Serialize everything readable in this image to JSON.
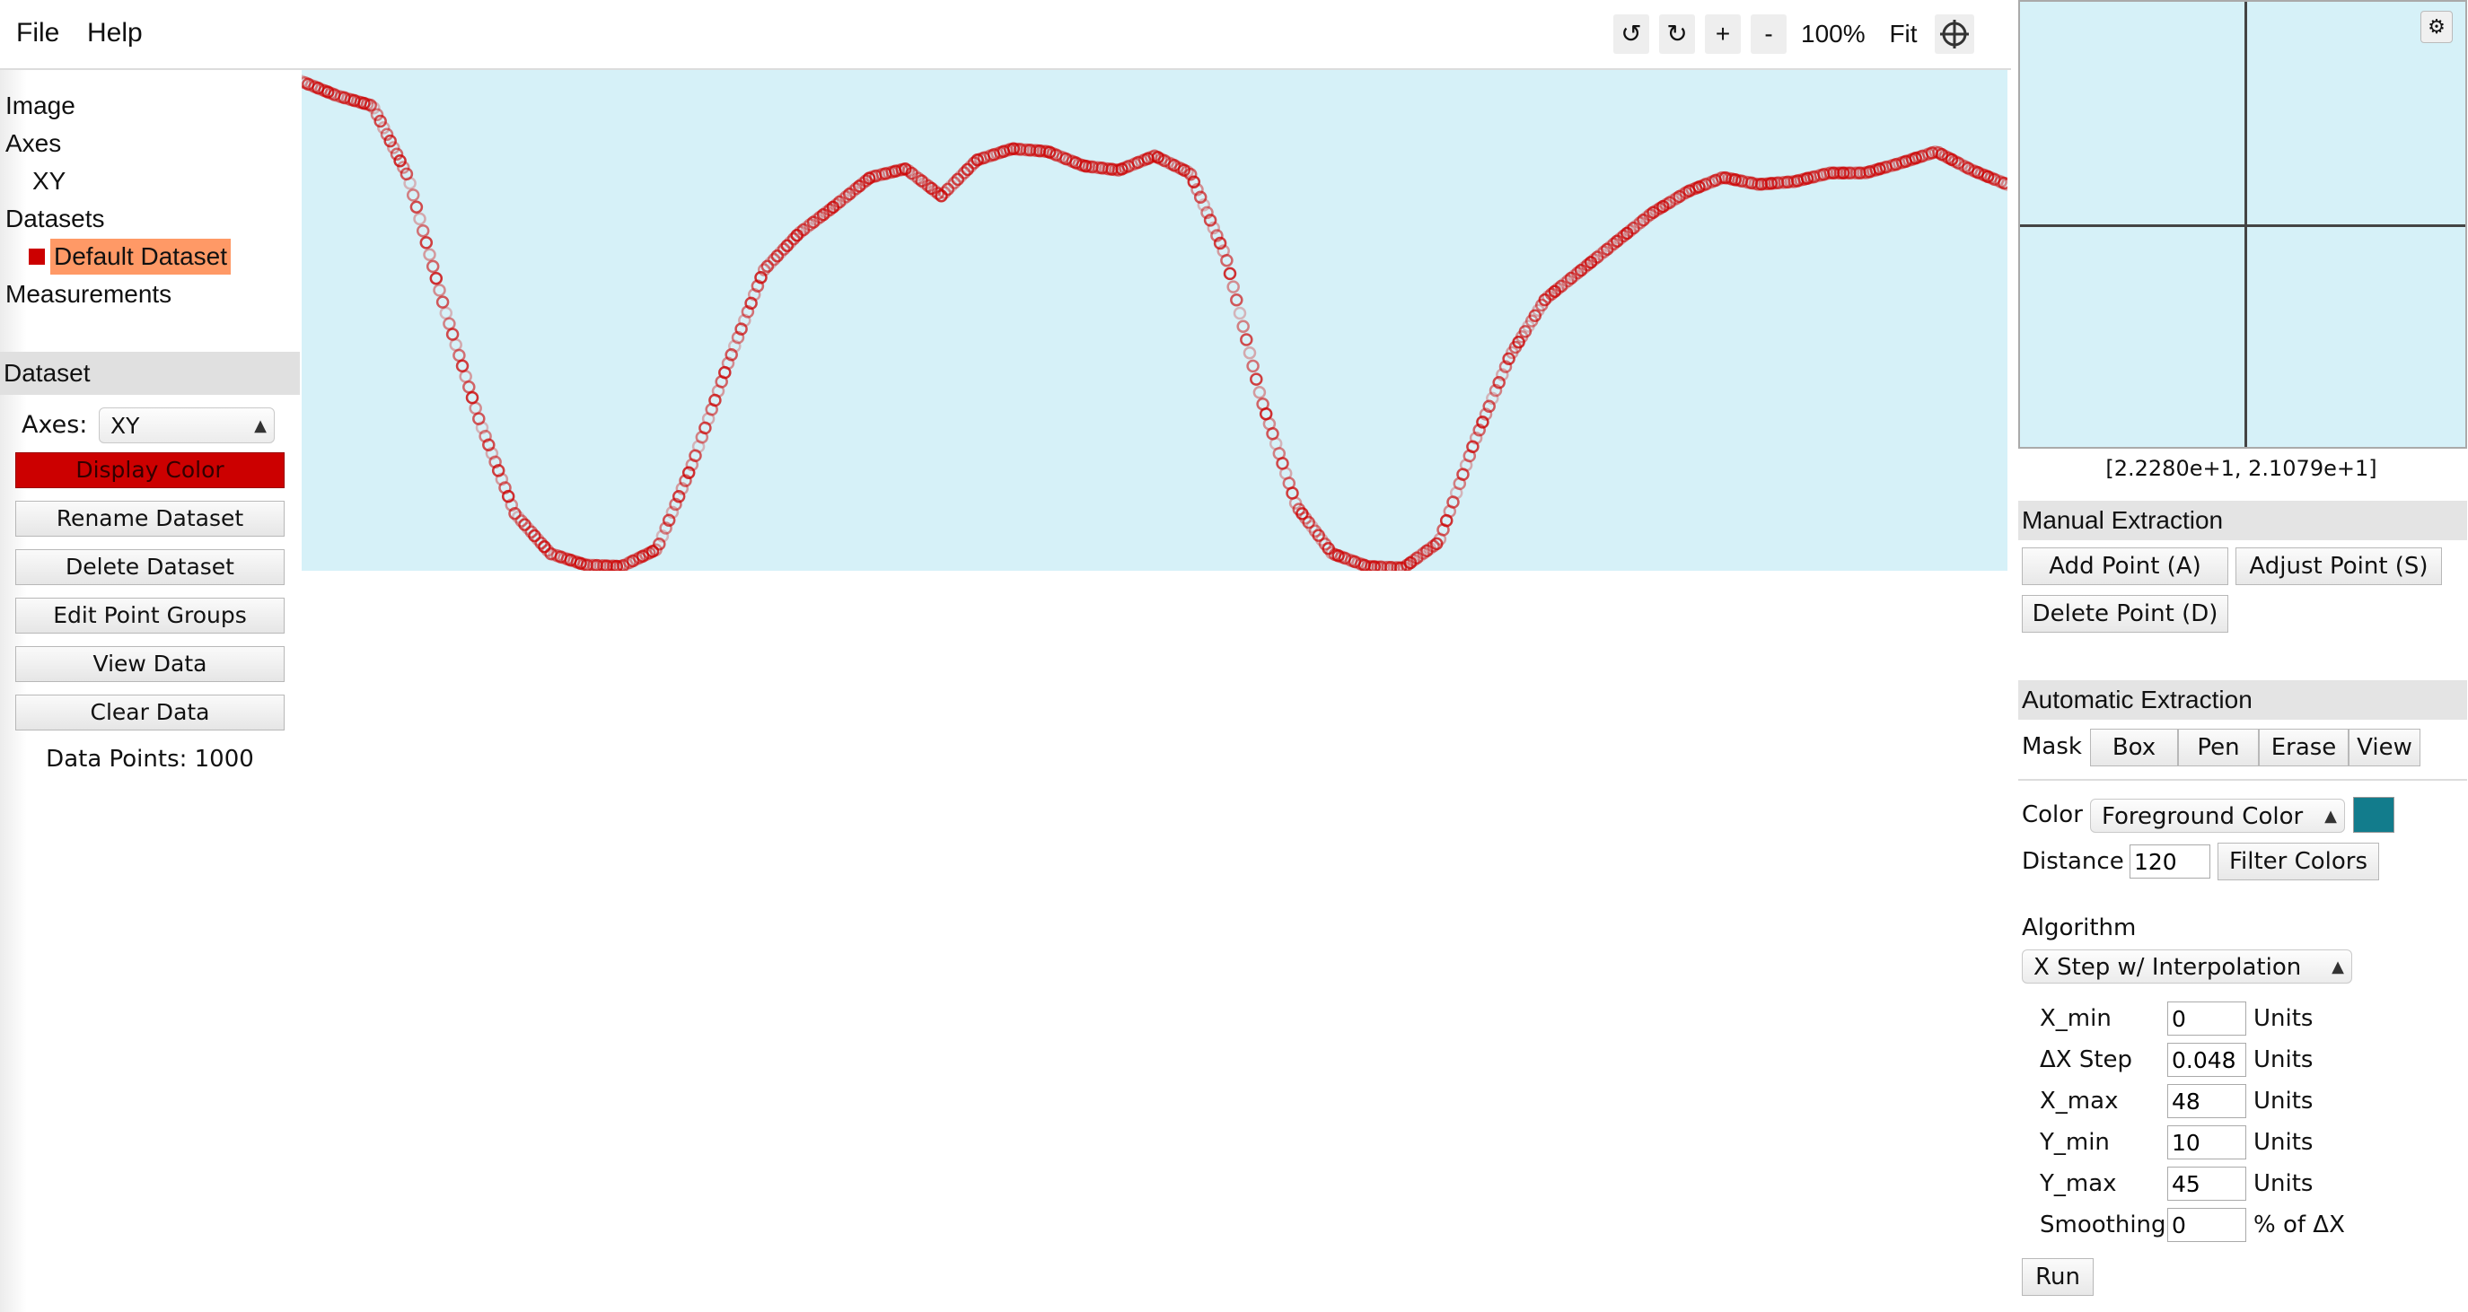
{
  "menu": {
    "file": "File",
    "help": "Help"
  },
  "toolbar": {
    "rotate_ccw": "↺",
    "rotate_cw": "↻",
    "zoom_in": "+",
    "zoom_out": "-",
    "zoom_level": "100%",
    "fit": "Fit"
  },
  "sidebar": {
    "tree": {
      "image": "Image",
      "axes": "Axes",
      "axes_xy": "XY",
      "datasets": "Datasets",
      "default_dataset": "Default Dataset",
      "measurements": "Measurements"
    },
    "dataset_section": "Dataset",
    "axes_label": "Axes:",
    "axes_value": "XY",
    "buttons": {
      "display_color": "Display Color",
      "rename": "Rename Dataset",
      "delete": "Delete Dataset",
      "edit_groups": "Edit Point Groups",
      "view_data": "View Data",
      "clear_data": "Clear Data"
    },
    "data_points": "Data Points: 1000"
  },
  "colors": {
    "dataset": "#cc0000",
    "active_highlight": "#ff9966",
    "canvas_bg": "#d6f1f8",
    "foreground_swatch": "#127c8c"
  },
  "chart_data": {
    "type": "scatter",
    "x": [
      0,
      1,
      2,
      3,
      4,
      5,
      6,
      7,
      8,
      9,
      10,
      11,
      12,
      13,
      14,
      15,
      16,
      17,
      18,
      19,
      20,
      21,
      22,
      23,
      24,
      25,
      26,
      27,
      28,
      29,
      30,
      31,
      32,
      33,
      34,
      35,
      36,
      37,
      38,
      39,
      40,
      41,
      42,
      43,
      44,
      45,
      46,
      47,
      48
    ],
    "y": [
      44.2,
      43.2,
      42.5,
      37.5,
      28.5,
      20.5,
      14.0,
      11.2,
      10.4,
      10.3,
      11.5,
      17.5,
      24.5,
      31.0,
      33.6,
      35.5,
      37.5,
      38.1,
      36.2,
      38.7,
      39.5,
      39.3,
      38.3,
      38.0,
      39.0,
      37.8,
      32.0,
      22.0,
      14.5,
      11.2,
      10.3,
      10.2,
      12.0,
      19.0,
      25.0,
      29.0,
      31.0,
      33.0,
      35.0,
      36.5,
      37.5,
      37.0,
      37.2,
      37.8,
      37.8,
      38.5,
      39.3,
      38.0,
      37.0
    ],
    "xlim": [
      0,
      48
    ],
    "ylim": [
      10,
      45
    ],
    "point_count": 1000
  },
  "zoom_view": {
    "settings_icon": "⚙",
    "coords": "[2.2280e+1, 2.1079e+1]"
  },
  "manual": {
    "title": "Manual Extraction",
    "add_point": "Add Point (A)",
    "adjust_point": "Adjust Point (S)",
    "delete_point": "Delete Point (D)"
  },
  "auto": {
    "title": "Automatic Extraction",
    "mask_label": "Mask",
    "mask_box": "Box",
    "mask_pen": "Pen",
    "mask_erase": "Erase",
    "mask_view": "View",
    "color_label": "Color",
    "color_select": "Foreground Color",
    "distance_label": "Distance",
    "distance_value": "120",
    "filter_colors": "Filter Colors",
    "algorithm_label": "Algorithm",
    "algorithm_select": "X Step w/ Interpolation",
    "params": [
      {
        "name": "X_min",
        "value": "0",
        "unit": "Units"
      },
      {
        "name": "ΔX Step",
        "value": "0.048",
        "unit": "Units"
      },
      {
        "name": "X_max",
        "value": "48",
        "unit": "Units"
      },
      {
        "name": "Y_min",
        "value": "10",
        "unit": "Units"
      },
      {
        "name": "Y_max",
        "value": "45",
        "unit": "Units"
      },
      {
        "name": "Smoothing",
        "value": "0",
        "unit": "% of ΔX"
      }
    ],
    "run": "Run"
  }
}
